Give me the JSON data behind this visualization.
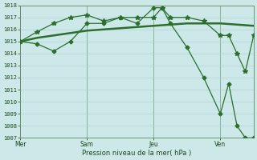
{
  "background_color": "#cce8e8",
  "grid_color_major": "#aacccc",
  "grid_color_minor": "#bbdddd",
  "line_color": "#2d6e2d",
  "ylabel_range": [
    1007,
    1018
  ],
  "yticks": [
    1007,
    1008,
    1009,
    1010,
    1011,
    1012,
    1013,
    1014,
    1015,
    1016,
    1017,
    1018
  ],
  "xlabel": "Pression niveau de la mer( hPa )",
  "day_labels": [
    "Mer",
    "Sam",
    "Jeu",
    "Ven"
  ],
  "day_positions": [
    0,
    8,
    16,
    24
  ],
  "xlim": [
    0,
    28
  ],
  "series_smooth": {
    "x": [
      0,
      2,
      4,
      6,
      8,
      10,
      12,
      14,
      16,
      18,
      20,
      22,
      24,
      26,
      28
    ],
    "y": [
      1015.0,
      1015.3,
      1015.5,
      1015.7,
      1015.9,
      1016.0,
      1016.1,
      1016.2,
      1016.3,
      1016.4,
      1016.5,
      1016.5,
      1016.5,
      1016.4,
      1016.3
    ]
  },
  "series_upper": {
    "x": [
      0,
      2,
      4,
      6,
      8,
      10,
      12,
      14,
      16,
      17,
      18,
      20,
      22,
      24,
      25,
      26,
      27,
      28
    ],
    "y": [
      1015.0,
      1015.8,
      1016.5,
      1017.0,
      1017.2,
      1016.7,
      1017.0,
      1017.0,
      1017.0,
      1017.8,
      1017.0,
      1017.0,
      1016.7,
      1015.5,
      1015.5,
      1014.0,
      1012.5,
      1015.5
    ]
  },
  "series_drop": {
    "x": [
      0,
      2,
      4,
      6,
      8,
      10,
      12,
      14,
      16,
      17,
      18,
      20,
      22,
      24,
      25,
      26,
      27,
      28
    ],
    "y": [
      1015.0,
      1014.8,
      1014.2,
      1015.0,
      1016.5,
      1016.5,
      1017.0,
      1016.5,
      1017.8,
      1017.8,
      1016.5,
      1014.5,
      1012.0,
      1009.0,
      1011.5,
      1008.0,
      1007.0,
      1007.0
    ]
  }
}
